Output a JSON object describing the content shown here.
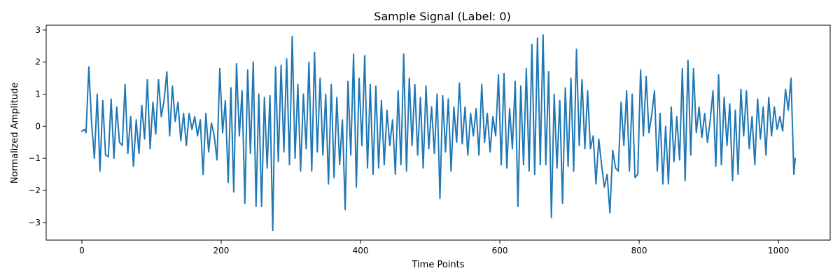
{
  "chart_data": {
    "type": "line",
    "title": "Sample Signal (Label: 0)",
    "xlabel": "Time Points",
    "ylabel": "Normalized Amplitude",
    "xlim": [
      -51.2,
      1074.2
    ],
    "ylim": [
      -3.55,
      3.15
    ],
    "xticks": [
      0,
      200,
      400,
      600,
      800,
      1000
    ],
    "yticks": [
      -3,
      -2,
      -1,
      0,
      1,
      2,
      3
    ],
    "grid": false,
    "legend": "none",
    "series": [
      {
        "color": "#1f77b4",
        "points": [
          [
            0,
            -0.15
          ],
          [
            4,
            -0.1
          ],
          [
            6,
            -0.2
          ],
          [
            10,
            1.85
          ],
          [
            14,
            0.1
          ],
          [
            18,
            -1.0
          ],
          [
            22,
            1.0
          ],
          [
            26,
            -1.4
          ],
          [
            30,
            0.8
          ],
          [
            34,
            -0.9
          ],
          [
            38,
            -0.95
          ],
          [
            42,
            0.85
          ],
          [
            46,
            -1.0
          ],
          [
            50,
            0.6
          ],
          [
            54,
            -0.5
          ],
          [
            58,
            -0.6
          ],
          [
            62,
            1.3
          ],
          [
            66,
            -0.85
          ],
          [
            70,
            0.3
          ],
          [
            74,
            -1.25
          ],
          [
            78,
            0.2
          ],
          [
            82,
            -0.85
          ],
          [
            86,
            0.65
          ],
          [
            90,
            -0.4
          ],
          [
            94,
            1.45
          ],
          [
            98,
            -0.7
          ],
          [
            102,
            0.75
          ],
          [
            106,
            -0.25
          ],
          [
            110,
            1.45
          ],
          [
            114,
            0.3
          ],
          [
            118,
            0.8
          ],
          [
            122,
            1.7
          ],
          [
            126,
            -0.3
          ],
          [
            130,
            1.25
          ],
          [
            134,
            0.15
          ],
          [
            138,
            0.75
          ],
          [
            142,
            -0.45
          ],
          [
            146,
            0.4
          ],
          [
            150,
            -0.6
          ],
          [
            154,
            0.4
          ],
          [
            158,
            -0.1
          ],
          [
            162,
            0.3
          ],
          [
            166,
            -0.3
          ],
          [
            170,
            0.2
          ],
          [
            174,
            -1.5
          ],
          [
            178,
            0.4
          ],
          [
            182,
            -0.8
          ],
          [
            186,
            0.1
          ],
          [
            190,
            -0.3
          ],
          [
            194,
            -1.05
          ],
          [
            198,
            1.8
          ],
          [
            202,
            -0.2
          ],
          [
            206,
            0.8
          ],
          [
            210,
            -1.75
          ],
          [
            214,
            1.2
          ],
          [
            218,
            -2.05
          ],
          [
            222,
            1.95
          ],
          [
            226,
            -0.3
          ],
          [
            230,
            1.1
          ],
          [
            234,
            -2.4
          ],
          [
            238,
            1.75
          ],
          [
            242,
            -0.85
          ],
          [
            246,
            2.0
          ],
          [
            250,
            -2.5
          ],
          [
            254,
            1.0
          ],
          [
            258,
            -2.5
          ],
          [
            262,
            0.9
          ],
          [
            266,
            -1.3
          ],
          [
            270,
            0.95
          ],
          [
            274,
            -3.25
          ],
          [
            278,
            1.85
          ],
          [
            282,
            -1.1
          ],
          [
            286,
            1.9
          ],
          [
            290,
            -0.8
          ],
          [
            294,
            2.1
          ],
          [
            298,
            -1.2
          ],
          [
            302,
            2.8
          ],
          [
            306,
            -1.0
          ],
          [
            310,
            1.3
          ],
          [
            314,
            -1.4
          ],
          [
            318,
            1.0
          ],
          [
            322,
            -0.7
          ],
          [
            326,
            2.0
          ],
          [
            330,
            -1.4
          ],
          [
            334,
            2.3
          ],
          [
            338,
            -0.8
          ],
          [
            342,
            1.5
          ],
          [
            346,
            -0.9
          ],
          [
            350,
            1.0
          ],
          [
            354,
            -1.8
          ],
          [
            358,
            1.3
          ],
          [
            362,
            -1.6
          ],
          [
            366,
            0.9
          ],
          [
            370,
            -1.2
          ],
          [
            374,
            0.2
          ],
          [
            378,
            -2.6
          ],
          [
            382,
            1.4
          ],
          [
            386,
            -0.9
          ],
          [
            390,
            2.25
          ],
          [
            394,
            -1.9
          ],
          [
            398,
            1.5
          ],
          [
            402,
            -0.6
          ],
          [
            406,
            2.2
          ],
          [
            410,
            -1.3
          ],
          [
            414,
            1.3
          ],
          [
            418,
            -1.5
          ],
          [
            422,
            1.25
          ],
          [
            426,
            -1.3
          ],
          [
            430,
            0.8
          ],
          [
            434,
            -1.2
          ],
          [
            438,
            0.5
          ],
          [
            442,
            -0.6
          ],
          [
            446,
            0.2
          ],
          [
            450,
            -1.5
          ],
          [
            454,
            1.1
          ],
          [
            458,
            -1.2
          ],
          [
            462,
            2.25
          ],
          [
            466,
            -1.4
          ],
          [
            470,
            1.5
          ],
          [
            474,
            -0.6
          ],
          [
            478,
            1.3
          ],
          [
            482,
            -0.9
          ],
          [
            486,
            0.9
          ],
          [
            490,
            -1.3
          ],
          [
            494,
            1.25
          ],
          [
            498,
            -0.7
          ],
          [
            502,
            0.6
          ],
          [
            506,
            -0.85
          ],
          [
            510,
            1.0
          ],
          [
            514,
            -2.25
          ],
          [
            518,
            0.95
          ],
          [
            522,
            -0.8
          ],
          [
            526,
            0.85
          ],
          [
            530,
            -1.4
          ],
          [
            534,
            0.6
          ],
          [
            538,
            -0.5
          ],
          [
            542,
            1.35
          ],
          [
            546,
            -0.55
          ],
          [
            550,
            0.6
          ],
          [
            554,
            -0.9
          ],
          [
            558,
            0.4
          ],
          [
            562,
            -0.3
          ],
          [
            566,
            0.55
          ],
          [
            570,
            -0.9
          ],
          [
            574,
            1.3
          ],
          [
            578,
            -0.5
          ],
          [
            582,
            0.4
          ],
          [
            586,
            -0.8
          ],
          [
            590,
            0.3
          ],
          [
            594,
            -0.3
          ],
          [
            598,
            1.6
          ],
          [
            602,
            -1.2
          ],
          [
            606,
            1.65
          ],
          [
            610,
            -1.3
          ],
          [
            614,
            0.55
          ],
          [
            618,
            -0.7
          ],
          [
            622,
            1.4
          ],
          [
            626,
            -2.5
          ],
          [
            630,
            1.25
          ],
          [
            634,
            -1.2
          ],
          [
            638,
            1.8
          ],
          [
            642,
            -1.4
          ],
          [
            646,
            2.55
          ],
          [
            650,
            -1.5
          ],
          [
            654,
            2.75
          ],
          [
            658,
            -1.2
          ],
          [
            662,
            2.85
          ],
          [
            666,
            -1.2
          ],
          [
            670,
            1.7
          ],
          [
            674,
            -2.85
          ],
          [
            678,
            1.0
          ],
          [
            682,
            -1.3
          ],
          [
            686,
            0.8
          ],
          [
            690,
            -2.4
          ],
          [
            694,
            1.2
          ],
          [
            698,
            -1.25
          ],
          [
            702,
            1.5
          ],
          [
            706,
            -1.4
          ],
          [
            710,
            2.4
          ],
          [
            714,
            -0.6
          ],
          [
            718,
            1.45
          ],
          [
            722,
            -0.7
          ],
          [
            726,
            1.1
          ],
          [
            730,
            -0.7
          ],
          [
            734,
            -0.3
          ],
          [
            738,
            -1.8
          ],
          [
            742,
            -0.4
          ],
          [
            746,
            -1.2
          ],
          [
            750,
            -1.9
          ],
          [
            754,
            -1.5
          ],
          [
            758,
            -2.7
          ],
          [
            762,
            -0.75
          ],
          [
            766,
            -1.3
          ],
          [
            770,
            -1.4
          ],
          [
            774,
            0.75
          ],
          [
            778,
            -0.6
          ],
          [
            782,
            1.1
          ],
          [
            786,
            -1.4
          ],
          [
            790,
            1.0
          ],
          [
            794,
            -1.6
          ],
          [
            798,
            -1.5
          ],
          [
            802,
            1.75
          ],
          [
            806,
            -0.3
          ],
          [
            810,
            1.55
          ],
          [
            814,
            -0.2
          ],
          [
            818,
            0.35
          ],
          [
            822,
            1.1
          ],
          [
            826,
            -1.4
          ],
          [
            830,
            0.4
          ],
          [
            834,
            -1.8
          ],
          [
            838,
            0.0
          ],
          [
            842,
            -1.8
          ],
          [
            846,
            0.6
          ],
          [
            850,
            -1.1
          ],
          [
            854,
            0.3
          ],
          [
            858,
            -1.05
          ],
          [
            862,
            1.8
          ],
          [
            866,
            -1.7
          ],
          [
            870,
            2.05
          ],
          [
            874,
            -0.9
          ],
          [
            878,
            1.8
          ],
          [
            882,
            -0.2
          ],
          [
            886,
            0.6
          ],
          [
            890,
            -0.35
          ],
          [
            894,
            0.4
          ],
          [
            898,
            -0.5
          ],
          [
            902,
            0.2
          ],
          [
            906,
            1.1
          ],
          [
            910,
            -1.25
          ],
          [
            914,
            1.6
          ],
          [
            918,
            -1.2
          ],
          [
            922,
            0.9
          ],
          [
            926,
            -0.6
          ],
          [
            930,
            0.7
          ],
          [
            934,
            -1.7
          ],
          [
            938,
            0.5
          ],
          [
            942,
            -1.5
          ],
          [
            946,
            1.15
          ],
          [
            950,
            -0.3
          ],
          [
            954,
            1.1
          ],
          [
            958,
            -0.7
          ],
          [
            962,
            0.3
          ],
          [
            966,
            -1.2
          ],
          [
            970,
            0.85
          ],
          [
            974,
            -0.4
          ],
          [
            978,
            0.6
          ],
          [
            982,
            -0.9
          ],
          [
            986,
            0.9
          ],
          [
            990,
            -0.3
          ],
          [
            994,
            0.6
          ],
          [
            998,
            -0.1
          ],
          [
            1002,
            0.3
          ],
          [
            1006,
            -0.15
          ],
          [
            1010,
            1.15
          ],
          [
            1014,
            0.5
          ],
          [
            1018,
            1.5
          ],
          [
            1022,
            -1.5
          ],
          [
            1024,
            -1.0
          ]
        ]
      }
    ]
  }
}
